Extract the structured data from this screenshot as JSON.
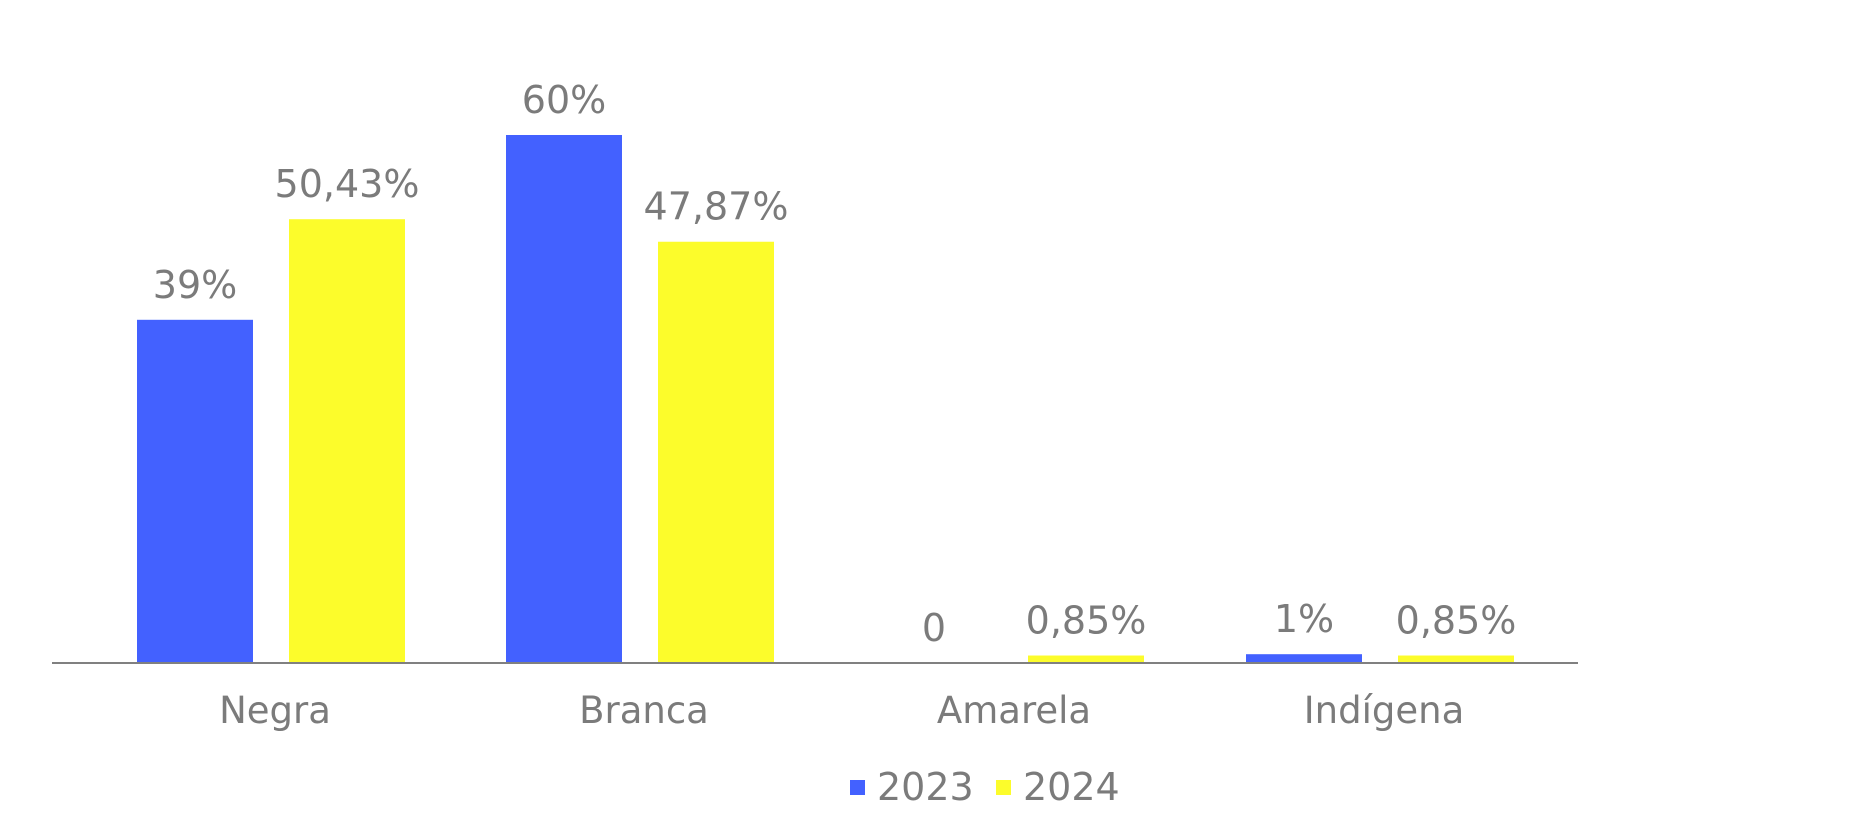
{
  "chart_data": {
    "type": "bar",
    "categories": [
      "Negra",
      "Branca",
      "Amarela",
      "Indígena"
    ],
    "series": [
      {
        "name": "2023",
        "color": "#4361ff",
        "values": [
          39,
          60,
          0,
          1
        ],
        "labels": [
          "39%",
          "60%",
          "0",
          "1%"
        ]
      },
      {
        "name": "2024",
        "color": "#fcfc2b",
        "values": [
          50.43,
          47.87,
          0.85,
          0.85
        ],
        "labels": [
          "50,43%",
          "47,87%",
          "0,85%",
          "0,85%"
        ]
      }
    ],
    "ylim": [
      0,
      60
    ],
    "grid": false,
    "legend": "bottom-center",
    "axis_color": "#808080",
    "text_color": "#7b7b7b"
  }
}
